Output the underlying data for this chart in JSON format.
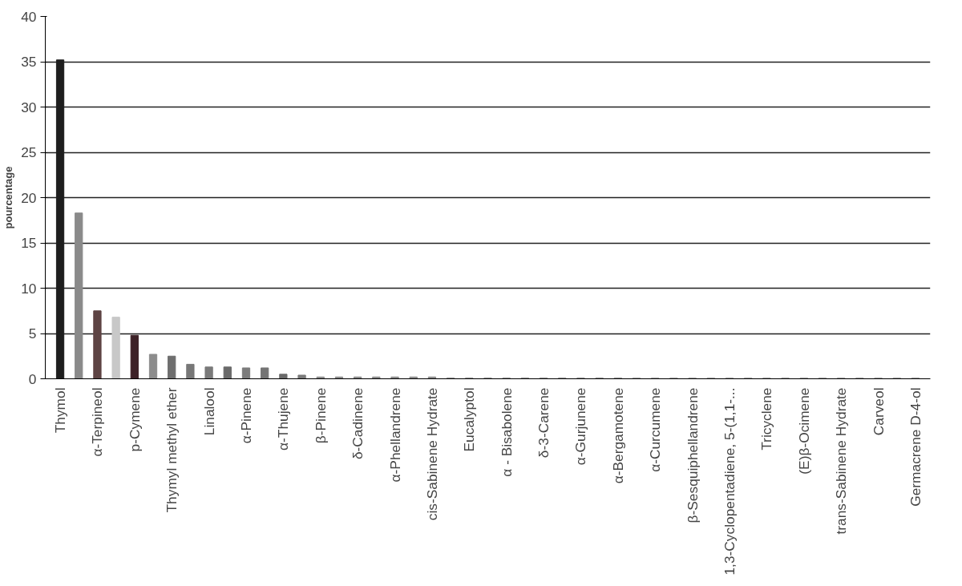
{
  "chart_data": {
    "type": "bar",
    "ylabel": "pourcentage",
    "categories": [
      "Thymol",
      null,
      "α-Terpineol",
      null,
      "p-Cymene",
      null,
      "Thymyl methyl ether",
      null,
      "Linalool",
      null,
      "α-Pinene",
      null,
      "α-Thujene",
      null,
      "β-Pinene",
      null,
      "δ-Cadinene",
      null,
      "α-Phellandrene",
      null,
      "cis-Sabinene Hydrate",
      null,
      "Eucalyptol",
      null,
      "α - Bisabolene",
      null,
      "δ-3-Carene",
      null,
      "α-Gurjunene",
      null,
      "α-Bergamotene",
      null,
      "α-Curcumene",
      null,
      "β-Sesquiphellandrene",
      null,
      "1,3-Cyclopentadiene, 5-(1,1-...",
      null,
      "Tricyclene",
      null,
      "(E)β-Ocimene",
      null,
      "trans-Sabinene Hydrate",
      null,
      "Carveol",
      null,
      "Germacrene D-4-ol"
    ],
    "values": [
      35.2,
      18.3,
      7.5,
      6.8,
      4.8,
      2.7,
      2.5,
      1.6,
      1.3,
      1.3,
      1.2,
      1.2,
      0.5,
      0.4,
      0.2,
      0.2,
      0.2,
      0.2,
      0.2,
      0.2,
      0.2,
      0.1,
      0.1,
      0.1,
      0.1,
      0.1,
      0.1,
      0.1,
      0.1,
      0.1,
      0.1,
      0.1,
      0.1,
      0.1,
      0.1,
      0.1,
      0.1,
      0.1,
      0.1,
      0.1,
      0.1,
      0.1,
      0.1,
      0.1,
      0.1,
      0.1,
      0.1
    ],
    "colors": [
      "#1e1e1e",
      "#8a8a8a",
      "#5e4444",
      "#c8c8c8",
      "#3d2228",
      "#8c8c8c",
      "#6e6e6e",
      "#777777",
      "#7a7a7a",
      "#6a6a6a",
      "#7c7c7c",
      "#747474",
      "#6a6a6a",
      "#7a7a7a",
      "#888888",
      "#888888",
      "#888888",
      "#888888",
      "#888888",
      "#888888",
      "#888888",
      "#999999",
      "#999999",
      "#999999",
      "#999999",
      "#999999",
      "#999999",
      "#999999",
      "#999999",
      "#999999",
      "#999999",
      "#aaaaaa",
      "#aaaaaa",
      "#aaaaaa",
      "#aaaaaa",
      "#aaaaaa",
      "#aaaaaa",
      "#aaaaaa",
      "#aaaaaa",
      "#aaaaaa",
      "#aaaaaa",
      "#aaaaaa",
      "#aaaaaa",
      "#aaaaaa",
      "#aaaaaa",
      "#aaaaaa",
      "#aaaaaa"
    ],
    "ylim": [
      0,
      40
    ],
    "yticks": [
      0,
      5,
      10,
      15,
      20,
      25,
      30,
      35,
      40
    ],
    "grid": "y"
  }
}
